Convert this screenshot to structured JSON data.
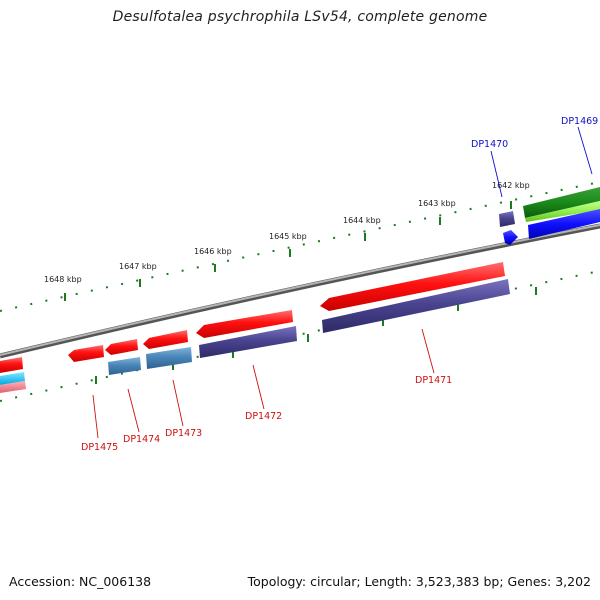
{
  "title": "Desulfotalea psychrophila LSv54, complete genome",
  "footer": {
    "accession": "Accession: NC_006138",
    "stats": "Topology: circular; Length: 3,523,383 bp; Genes: 3,202"
  },
  "ticks": [
    "1648 kbp",
    "1647 kbp",
    "1646 kbp",
    "1645 kbp",
    "1644 kbp",
    "1643 kbp",
    "1642 kbp"
  ],
  "genes": [
    {
      "id": "DP1469",
      "strand": "forward"
    },
    {
      "id": "DP1470",
      "strand": "forward"
    },
    {
      "id": "DP1471",
      "strand": "reverse"
    },
    {
      "id": "DP1472",
      "strand": "reverse"
    },
    {
      "id": "DP1473",
      "strand": "reverse"
    },
    {
      "id": "DP1474",
      "strand": "reverse"
    },
    {
      "id": "DP1475",
      "strand": "reverse"
    }
  ],
  "colors": {
    "backbone": "#8c8c8c",
    "tick": "#1e7a1e",
    "gene_forward_label": "#1010c8",
    "gene_reverse_label": "#cc1010",
    "cds_red": "#ff1010",
    "cds_purple": "#4a4490",
    "cds_steel": "#4a86b8",
    "cds_blue": "#1010ff",
    "cds_green": "#1a8a1a",
    "cds_lime": "#90ee50"
  }
}
